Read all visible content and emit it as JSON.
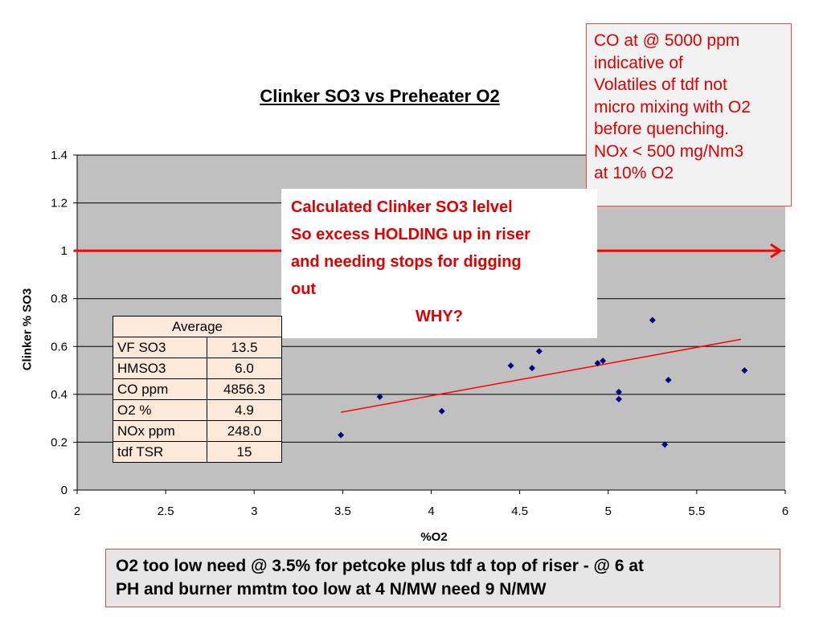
{
  "chart_data": {
    "type": "scatter",
    "title": "Clinker SO3 vs Preheater O2",
    "xlabel": "%O2",
    "ylabel": "Clinker % SO3",
    "xlim": [
      2,
      6
    ],
    "ylim": [
      0,
      1.4
    ],
    "x_ticks": [
      "2",
      "2.5",
      "3",
      "3.5",
      "4",
      "4.5",
      "5",
      "5.5",
      "6"
    ],
    "y_ticks": [
      "0",
      "0.2",
      "0.4",
      "0.6",
      "0.8",
      "1",
      "1.2",
      "1.4"
    ],
    "grid": true,
    "points": [
      {
        "x": 3.49,
        "y": 0.23
      },
      {
        "x": 3.71,
        "y": 0.39
      },
      {
        "x": 4.06,
        "y": 0.33
      },
      {
        "x": 4.45,
        "y": 0.52
      },
      {
        "x": 4.57,
        "y": 0.51
      },
      {
        "x": 4.61,
        "y": 0.58
      },
      {
        "x": 4.94,
        "y": 0.53
      },
      {
        "x": 4.97,
        "y": 0.54
      },
      {
        "x": 5.06,
        "y": 0.41
      },
      {
        "x": 5.06,
        "y": 0.38
      },
      {
        "x": 5.25,
        "y": 0.71
      },
      {
        "x": 5.32,
        "y": 0.19
      },
      {
        "x": 5.34,
        "y": 0.46
      },
      {
        "x": 5.77,
        "y": 0.5
      }
    ],
    "trendline": {
      "x": [
        3.49,
        5.75
      ],
      "y": [
        0.325,
        0.63
      ]
    },
    "reference_line": {
      "y": 1.0,
      "x": [
        2,
        6
      ]
    },
    "colors": {
      "plot_area": "#c0c0c0",
      "points": "#000080",
      "trendline": "#ff0000",
      "reference_line": "#ff0000",
      "gridline": "#000000"
    }
  },
  "annotations": {
    "co_note": [
      "CO at @ 5000 ppm",
      "indicative of",
      "Volatiles of tdf not",
      "micro mixing with O2",
      "before quenching.",
      "NOx < 500 mg/Nm3",
      "at 10% O2"
    ],
    "why_box": [
      "Calculated Clinker SO3  lelvel",
      "So excess HOLDING up in riser",
      "and needing stops for digging",
      "out"
    ],
    "why_label": "WHY?",
    "bottom_note": [
      "O2 too low need @ 3.5% for petcoke plus tdf  a top of riser - @ 6 at",
      "PH and burner mmtm too low at 4 N/MW need 9 N/MW"
    ]
  },
  "average_table": {
    "header": "Average",
    "rows": [
      {
        "label": "VF SO3",
        "value": "13.5"
      },
      {
        "label": "HMSO3",
        "value": "6.0"
      },
      {
        "label": "CO ppm",
        "value": "4856.3"
      },
      {
        "label": "O2 %",
        "value": "4.9"
      },
      {
        "label": "NOx ppm",
        "value": "248.0"
      },
      {
        "label": "tdf TSR",
        "value": "15"
      }
    ]
  }
}
